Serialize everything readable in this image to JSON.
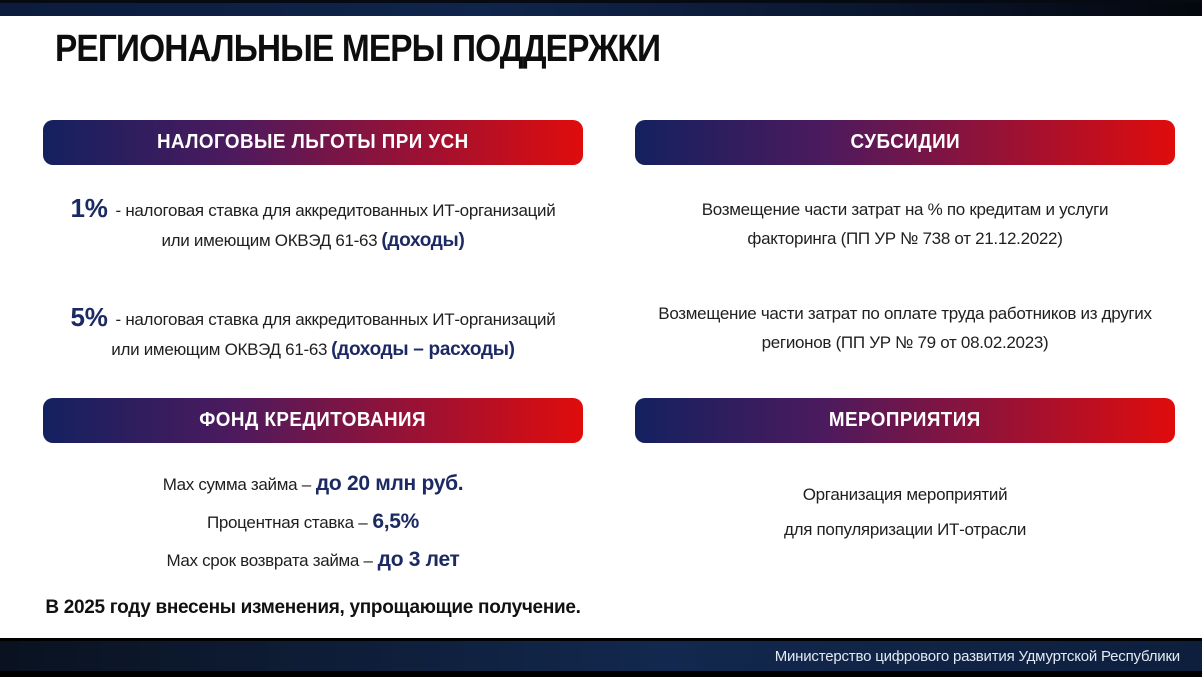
{
  "page": {
    "title": "РЕГИОНАЛЬНЫЕ МЕРЫ ПОДДЕРЖКИ",
    "footer": "Министерство цифрового развития Удмуртской Республики"
  },
  "colors": {
    "header_bar_gradient_start": "#14215f",
    "header_bar_gradient_end": "#e00c0c",
    "accent_navy": "#1c2a63",
    "footer_navy": "#12284e",
    "body_text": "#1f1f1f"
  },
  "sections": {
    "tax": {
      "header": "НАЛОГОВЫЕ ЛЬГОТЫ ПРИ УСН",
      "items": [
        {
          "rate": "1%",
          "line1": "- налоговая ставка для аккредитованных ИТ-организаций",
          "line2_prefix": "или имеющим ОКВЭД 61-63",
          "line2_highlight": "(доходы)"
        },
        {
          "rate": "5%",
          "line1": "- налоговая ставка для аккредитованных ИТ-организаций",
          "line2_prefix": "или имеющим ОКВЭД 61-63",
          "line2_highlight": "(доходы – расходы)"
        }
      ]
    },
    "subsidies": {
      "header": "СУБСИДИИ",
      "items": [
        {
          "line1": "Возмещение части затрат на % по кредитам и услуги",
          "line2": "факторинга (ПП УР № 738 от 21.12.2022)"
        },
        {
          "line1": "Возмещение части затрат по оплате труда работников из других",
          "line2": "регионов (ПП УР № 79 от 08.02.2023)"
        }
      ]
    },
    "fund": {
      "header": "ФОНД КРЕДИТОВАНИЯ",
      "items": [
        {
          "label": "Max сумма займа –",
          "value": "до 20 млн руб."
        },
        {
          "label": "Процентная ставка –",
          "value": "6,5%"
        },
        {
          "label": "Max срок возврата займа –",
          "value": "до 3 лет"
        }
      ],
      "note": "В 2025 году внесены изменения, упрощающие получение."
    },
    "events": {
      "header": "МЕРОПРИЯТИЯ",
      "items": [
        {
          "line1": "Организация мероприятий",
          "line2": "для популяризации ИТ-отрасли"
        }
      ]
    }
  }
}
